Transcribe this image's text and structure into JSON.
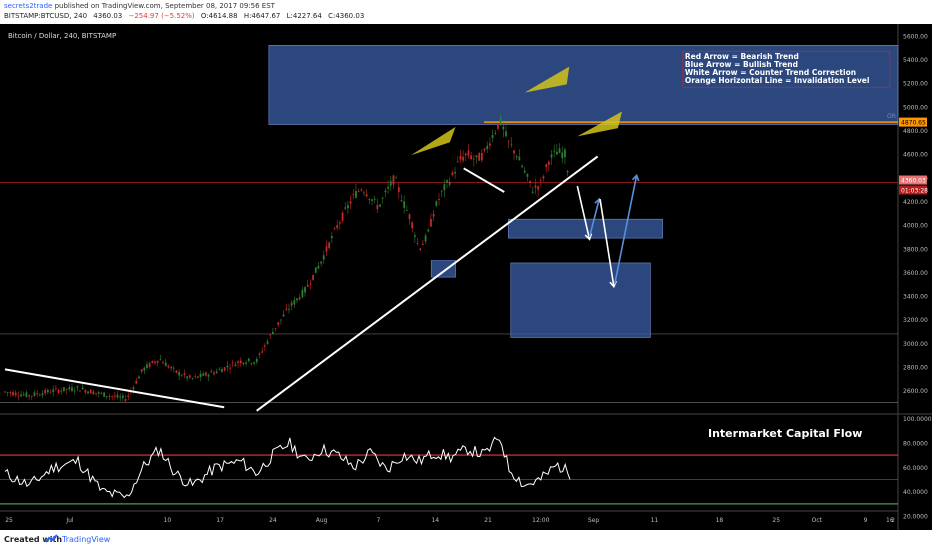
{
  "header": {
    "author": "secrets2trade",
    "published": "published on TradingView.com, September 08, 2017 09:56 EST",
    "symbol": "BITSTAMP:BTCUSD, 240",
    "last": "4360.03",
    "change": "−254.97 (−5.52%)",
    "open": "O:4614.88",
    "high": "H:4647.67",
    "low": "L:4227.64",
    "close": "C:4360.03"
  },
  "chart_data": {
    "type": "line",
    "title": "Bitcoin / Dollar, 240, BITSTAMP",
    "x_ticks": [
      "25",
      "Jul",
      "10",
      "17",
      "24",
      "Aug",
      "7",
      "14",
      "21",
      "12:00",
      "Sep",
      "11",
      "18",
      "25",
      "Oct",
      "9",
      "16",
      "2"
    ],
    "y_ticks": [
      "5600.00",
      "5400.00",
      "5200.00",
      "5000.00",
      "4800.00",
      "4600.00",
      "4400.00",
      "4200.00",
      "4000.00",
      "3800.00",
      "3600.00",
      "3400.00",
      "3200.00",
      "3000.00",
      "2800.00",
      "2600.00"
    ],
    "ylim": [
      2420,
      5700
    ],
    "price_series": [
      [
        0,
        2590
      ],
      [
        3,
        2560
      ],
      [
        6,
        2600
      ],
      [
        9,
        2620
      ],
      [
        12,
        2570
      ],
      [
        15,
        2530
      ],
      [
        17,
        2780
      ],
      [
        19,
        2870
      ],
      [
        21,
        2760
      ],
      [
        23,
        2700
      ],
      [
        26,
        2760
      ],
      [
        29,
        2850
      ],
      [
        31,
        2850
      ],
      [
        33,
        3100
      ],
      [
        35,
        3300
      ],
      [
        37,
        3450
      ],
      [
        39,
        3700
      ],
      [
        41,
        4000
      ],
      [
        43,
        4250
      ],
      [
        44,
        4320
      ],
      [
        46,
        4150
      ],
      [
        47,
        4280
      ],
      [
        48,
        4400
      ],
      [
        49,
        4200
      ],
      [
        50,
        4050
      ],
      [
        51,
        3800
      ],
      [
        52,
        3900
      ],
      [
        53,
        4150
      ],
      [
        54,
        4300
      ],
      [
        55,
        4400
      ],
      [
        56,
        4550
      ],
      [
        57,
        4600
      ],
      [
        58,
        4550
      ],
      [
        59,
        4600
      ],
      [
        60,
        4750
      ],
      [
        61,
        4880
      ],
      [
        62,
        4700
      ],
      [
        63,
        4600
      ],
      [
        64,
        4450
      ],
      [
        65,
        4300
      ],
      [
        66,
        4350
      ],
      [
        67,
        4550
      ],
      [
        68,
        4620
      ],
      [
        69,
        4600
      ],
      [
        69.6,
        4360
      ]
    ],
    "indicator_series": [
      [
        0,
        55
      ],
      [
        3,
        45
      ],
      [
        6,
        60
      ],
      [
        9,
        65
      ],
      [
        12,
        40
      ],
      [
        15,
        35
      ],
      [
        17,
        60
      ],
      [
        19,
        75
      ],
      [
        21,
        55
      ],
      [
        23,
        45
      ],
      [
        26,
        60
      ],
      [
        29,
        65
      ],
      [
        31,
        55
      ],
      [
        33,
        70
      ],
      [
        35,
        80
      ],
      [
        37,
        65
      ],
      [
        39,
        75
      ],
      [
        41,
        70
      ],
      [
        43,
        60
      ],
      [
        45,
        72
      ],
      [
        47,
        58
      ],
      [
        49,
        70
      ],
      [
        51,
        65
      ],
      [
        53,
        72
      ],
      [
        55,
        68
      ],
      [
        57,
        75
      ],
      [
        59,
        70
      ],
      [
        61,
        85
      ],
      [
        62,
        60
      ],
      [
        64,
        45
      ],
      [
        66,
        50
      ],
      [
        68,
        62
      ],
      [
        69.6,
        55
      ]
    ],
    "indicator_ylim": [
      25,
      102
    ],
    "indicator_ticks": [
      "100.0000",
      "80.0000",
      "60.0000",
      "40.0000",
      "20.0000"
    ],
    "indicator_levels": [
      70,
      30
    ],
    "indicator_label": "Intermarket Capital Flow",
    "price_label": "4360.03",
    "price_countdown": "01:03:28",
    "invalidation_label": "4870.65",
    "invalidation_value": 4870.65,
    "current_price": 4360.03,
    "or_label": "OR",
    "legend": [
      "Red Arrow = Bearish Trend",
      "Blue Arrow = Bullish Trend",
      "White Arrow = Counter Trend Correction",
      "Orange Horizontal Line = Invalidation Level"
    ],
    "zones": [
      {
        "x0": 32.5,
        "x1": 110,
        "y0": 4850,
        "y1": 5520
      },
      {
        "x0": 62,
        "x1": 81,
        "y0": 3890,
        "y1": 4050
      },
      {
        "x0": 52.5,
        "x1": 55.5,
        "y0": 3560,
        "y1": 3700
      },
      {
        "x0": 62.3,
        "x1": 79.5,
        "y0": 3050,
        "y1": 3680
      }
    ],
    "colors": {
      "background": "#000000",
      "candles": "#2e7d32",
      "zone": "#3b5fa8",
      "invalidation": "#ff9800",
      "hline": "#b71c1c",
      "overbought": "#e53935",
      "oversold": "#43a047",
      "label_tag": "#e57373",
      "blue_arrow": "#5b8fd8",
      "yellow_arrow": "#d4c41a",
      "white": "#ffffff"
    }
  },
  "footer": {
    "created": "Created with",
    "brand": "TradingView"
  }
}
